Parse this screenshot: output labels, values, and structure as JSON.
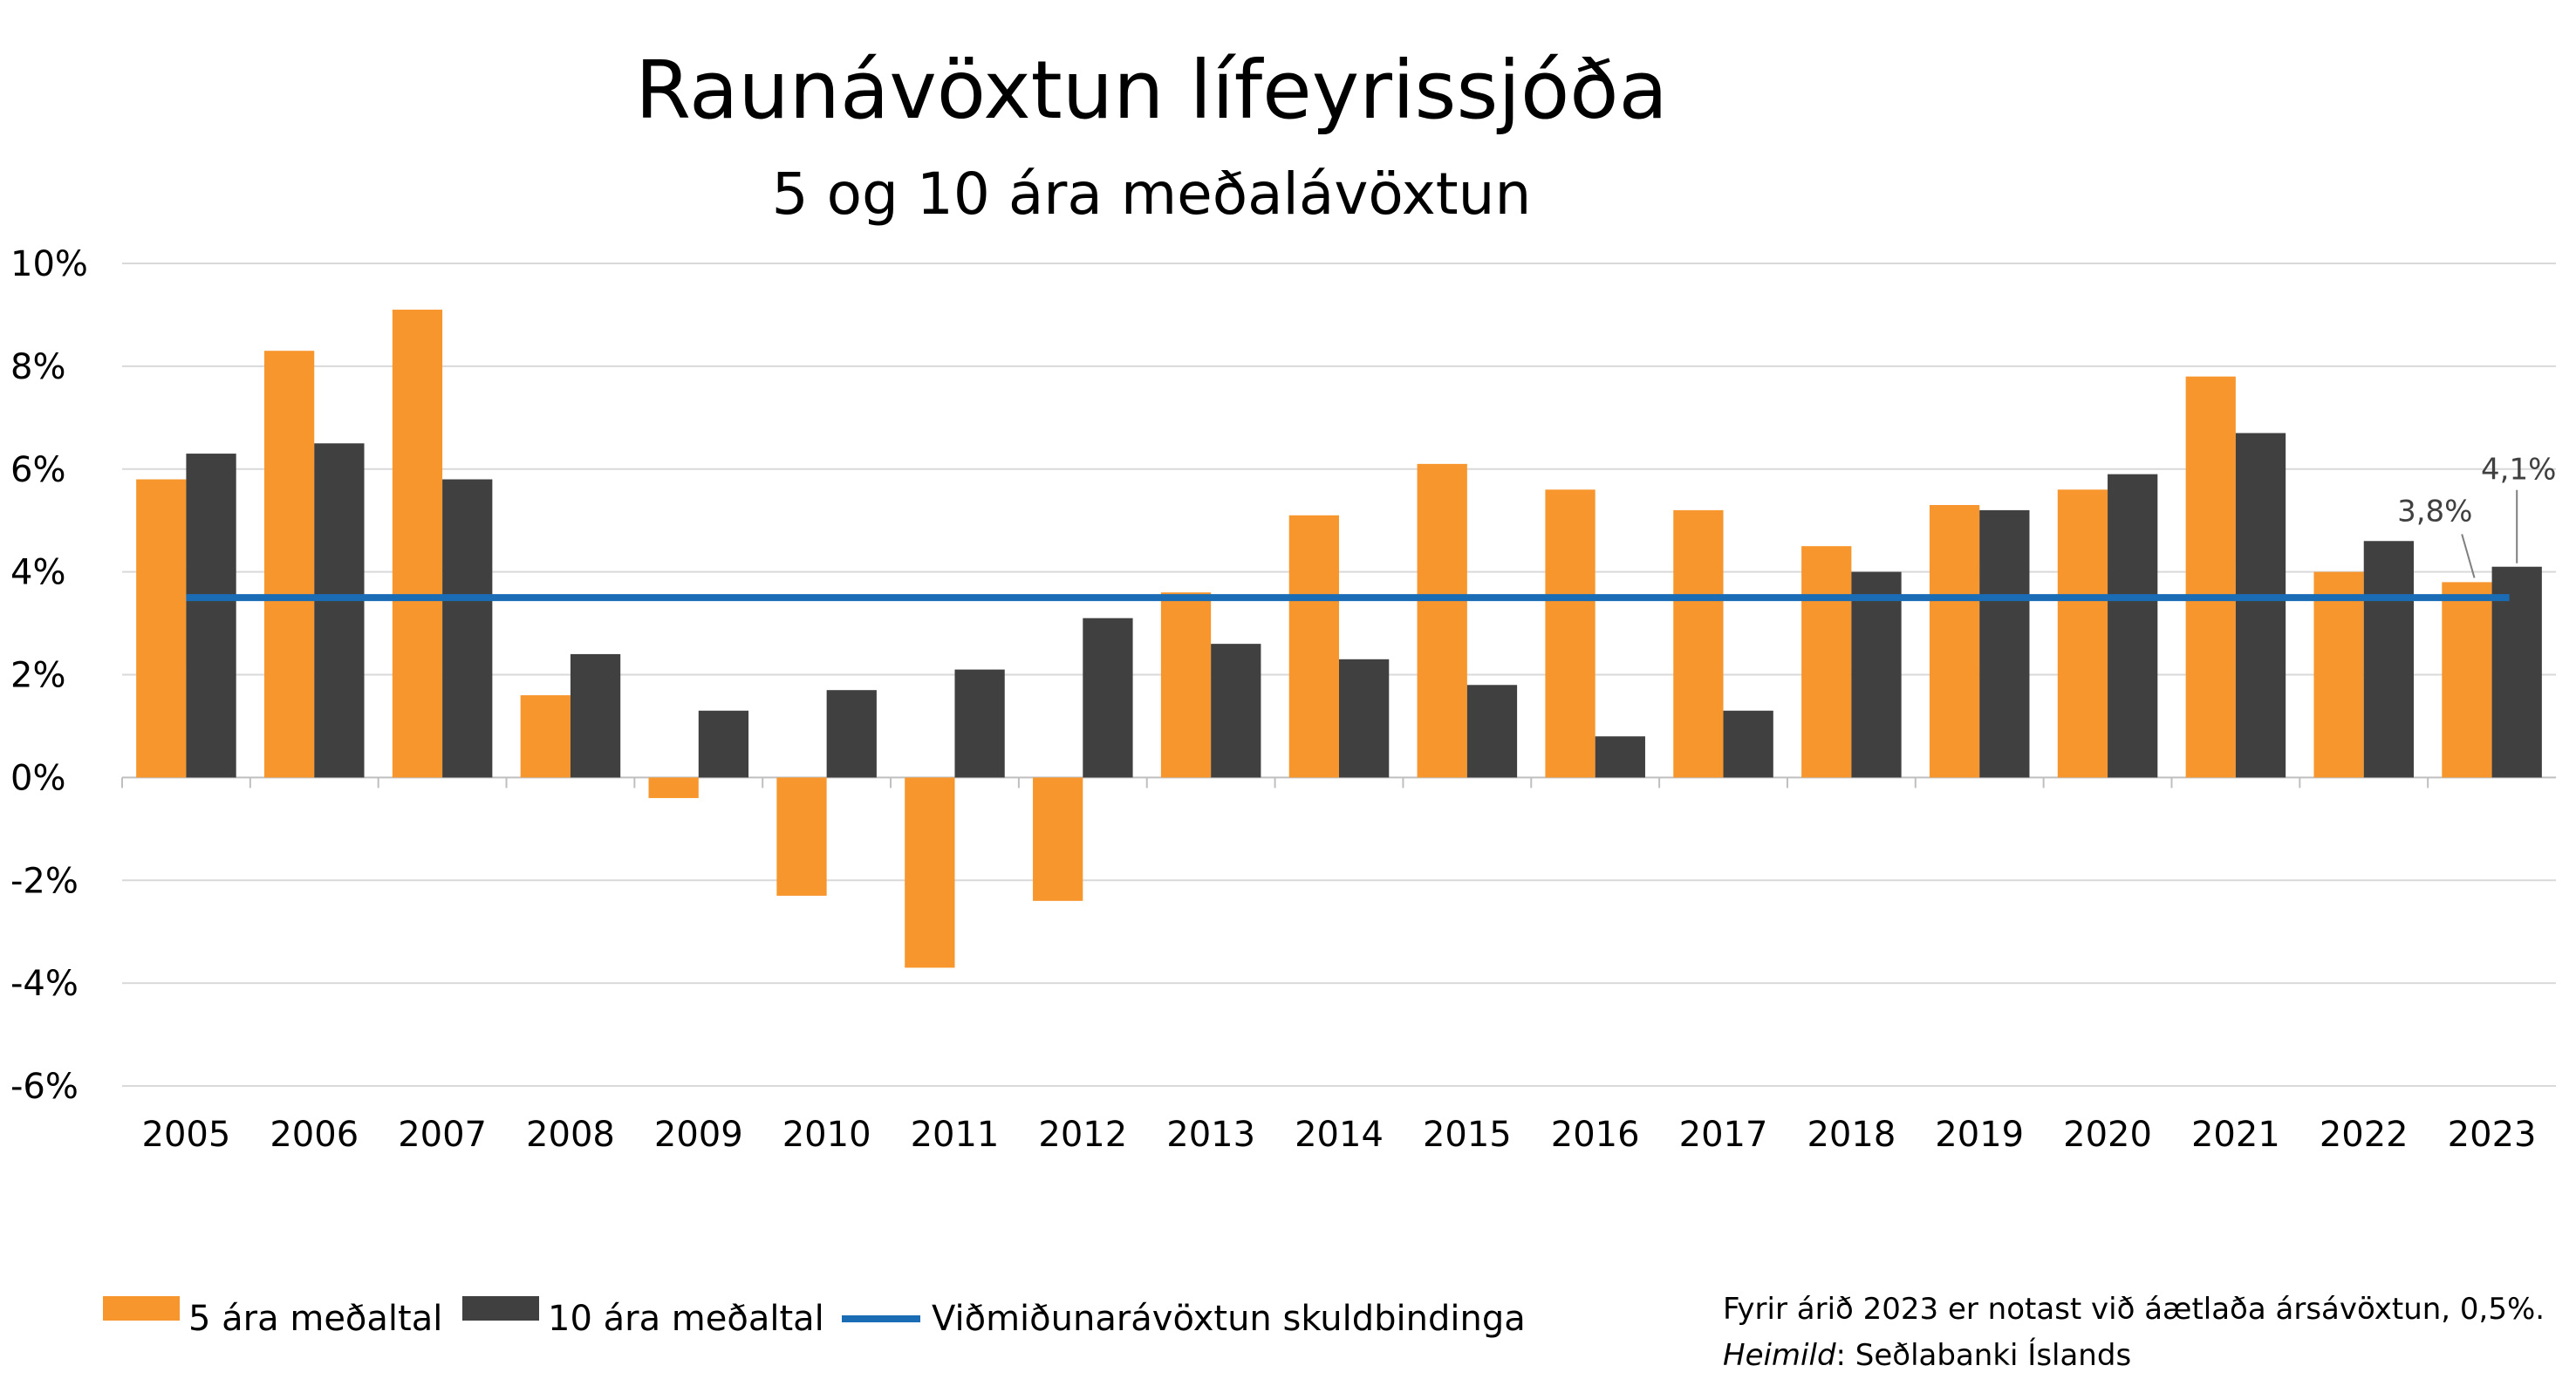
{
  "chart_data": {
    "type": "bar",
    "title": "Raunávöxtun lífeyrissjóða",
    "subtitle": "5 og 10 ára meðalávöxtun",
    "categories": [
      "2005",
      "2006",
      "2007",
      "2008",
      "2009",
      "2010",
      "2011",
      "2012",
      "2013",
      "2014",
      "2015",
      "2016",
      "2017",
      "2018",
      "2019",
      "2020",
      "2021",
      "2022",
      "2023"
    ],
    "series": [
      {
        "name": "5 ára meðaltal",
        "color": "#F7962D",
        "values": [
          5.8,
          8.3,
          9.1,
          1.6,
          -0.4,
          -2.3,
          -3.7,
          -2.4,
          3.6,
          5.1,
          6.1,
          5.6,
          5.2,
          4.5,
          5.3,
          5.6,
          7.8,
          4.0,
          3.8
        ]
      },
      {
        "name": "10 ára meðaltal",
        "color": "#404040",
        "values": [
          6.3,
          6.5,
          5.8,
          2.4,
          1.3,
          1.7,
          2.1,
          3.1,
          2.6,
          2.3,
          1.8,
          0.8,
          1.3,
          4.0,
          5.2,
          5.9,
          6.7,
          4.6,
          4.1
        ]
      }
    ],
    "reference_line": {
      "name": "Viðmiðunarávöxtun skuldbindinga",
      "value": 3.5,
      "color": "#1A6CB5"
    },
    "y_ticks": [
      "10%",
      "8%",
      "6%",
      "4%",
      "2%",
      "0%",
      "-2%",
      "-4%",
      "-6%"
    ],
    "ylim": [
      -6,
      10
    ],
    "grid": true,
    "legend_position": "bottom-left",
    "data_labels": [
      {
        "category": "2023",
        "series": "5 ára meðaltal",
        "text": "3,8%"
      },
      {
        "category": "2023",
        "series": "10 ára meðaltal",
        "text": "4,1%"
      }
    ]
  },
  "notes": {
    "line1": "Fyrir árið 2023 er notast við áætlaða ársávöxtun, 0,5%.",
    "source_label": "Heimild",
    "source_text": ": Seðlabanki Íslands"
  }
}
